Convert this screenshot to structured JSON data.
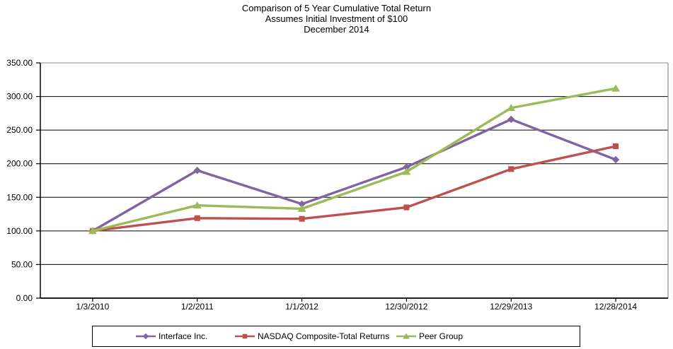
{
  "chart": {
    "title_lines": [
      "Comparison of 5 Year Cumulative Total Return",
      "Assumes Initial Investment of $100",
      "December 2014"
    ]
  },
  "chart_data": {
    "type": "line",
    "title": "Comparison of 5 Year Cumulative Total Return",
    "subtitle": "Assumes Initial Investment of $100",
    "date_line": "December 2014",
    "categories": [
      "1/3/2010",
      "1/2/2011",
      "1/1/2012",
      "12/30/2012",
      "12/29/2013",
      "12/28/2014"
    ],
    "series": [
      {
        "name": "Interface Inc.",
        "marker": "diamond",
        "color": "#8064A2",
        "values": [
          100,
          190,
          140,
          195,
          266,
          206
        ]
      },
      {
        "name": "NASDAQ Composite-Total Returns",
        "marker": "square",
        "color": "#C0504D",
        "values": [
          100,
          119,
          118,
          135,
          192,
          226
        ]
      },
      {
        "name": "Peer Group",
        "marker": "triangle",
        "color": "#9BBB59",
        "values": [
          100,
          138,
          133,
          188,
          283,
          312
        ]
      }
    ],
    "ylim": [
      0,
      350
    ],
    "ytick_step": 50,
    "ytick_labels": [
      "0.00",
      "50.00",
      "100.00",
      "150.00",
      "200.00",
      "250.00",
      "300.00",
      "350.00"
    ],
    "xlabel": "",
    "ylabel": "",
    "grid": "horizontal-major",
    "legend_position": "bottom-boxed"
  },
  "colors": {
    "background": "#ffffff",
    "text": "#000000",
    "gridline": "#000000",
    "axis": "#000000",
    "plot_border": "#8c8c8c",
    "legend_border": "#000000"
  }
}
